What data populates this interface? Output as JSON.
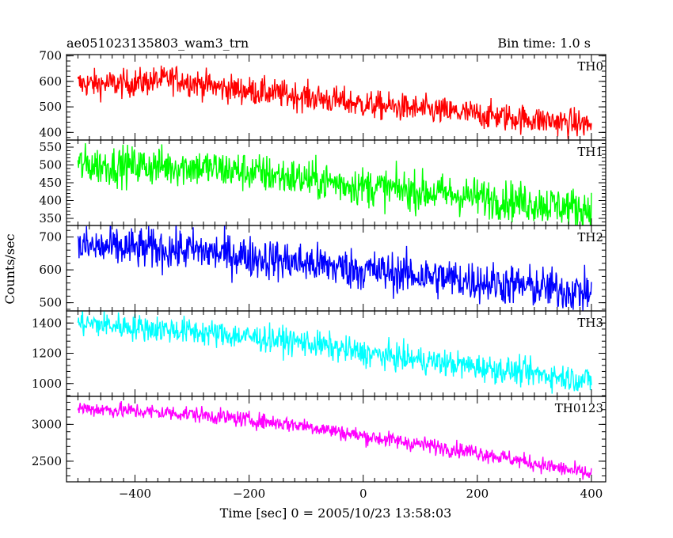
{
  "header": {
    "title": "ae051023135803_wam3_trn",
    "bin_time": "Bin time: 1.0 s"
  },
  "chart_data": {
    "type": "line",
    "xlabel": "Time [sec] 0 = 2005/10/23 13:58:03",
    "ylabel": "Counts/sec",
    "xlim": [
      -520,
      425
    ],
    "x_range": [
      -500,
      400
    ],
    "bin_time": 1.0,
    "xticks": [
      -400,
      -200,
      0,
      200,
      400
    ],
    "panels": [
      {
        "name": "TH0",
        "color": "#ff0000",
        "ylim": [
          370,
          705
        ],
        "yticks": [
          400,
          500,
          600,
          700
        ],
        "trend": [
          [
            -500,
            590
          ],
          [
            -420,
            590
          ],
          [
            -330,
            610
          ],
          [
            -250,
            575
          ],
          [
            -100,
            540
          ],
          [
            0,
            510
          ],
          [
            200,
            470
          ],
          [
            400,
            430
          ]
        ],
        "noise": 28
      },
      {
        "name": "TH1",
        "color": "#00ff00",
        "ylim": [
          330,
          570
        ],
        "yticks": [
          350,
          400,
          450,
          500,
          550
        ],
        "trend": [
          [
            -500,
            500
          ],
          [
            -300,
            495
          ],
          [
            -200,
            480
          ],
          [
            -100,
            460
          ],
          [
            0,
            440
          ],
          [
            200,
            410
          ],
          [
            400,
            375
          ]
        ],
        "noise": 28
      },
      {
        "name": "TH2",
        "color": "#0000ff",
        "ylim": [
          475,
          735
        ],
        "yticks": [
          500,
          600,
          700
        ],
        "trend": [
          [
            -500,
            670
          ],
          [
            -300,
            660
          ],
          [
            -200,
            640
          ],
          [
            0,
            600
          ],
          [
            200,
            565
          ],
          [
            400,
            530
          ]
        ],
        "noise": 32
      },
      {
        "name": "TH3",
        "color": "#00ffff",
        "ylim": [
          915,
          1480
        ],
        "yticks": [
          1000,
          1200,
          1400
        ],
        "trend": [
          [
            -500,
            1400
          ],
          [
            -300,
            1345
          ],
          [
            -100,
            1270
          ],
          [
            0,
            1200
          ],
          [
            200,
            1110
          ],
          [
            400,
            1020
          ]
        ],
        "noise": 45
      },
      {
        "name": "TH0123",
        "color": "#ff00ff",
        "ylim": [
          2220,
          3380
        ],
        "yticks": [
          2500,
          3000
        ],
        "trend": [
          [
            -500,
            3220
          ],
          [
            -300,
            3140
          ],
          [
            -100,
            2980
          ],
          [
            0,
            2840
          ],
          [
            200,
            2620
          ],
          [
            400,
            2320
          ]
        ],
        "noise": 55
      }
    ]
  }
}
